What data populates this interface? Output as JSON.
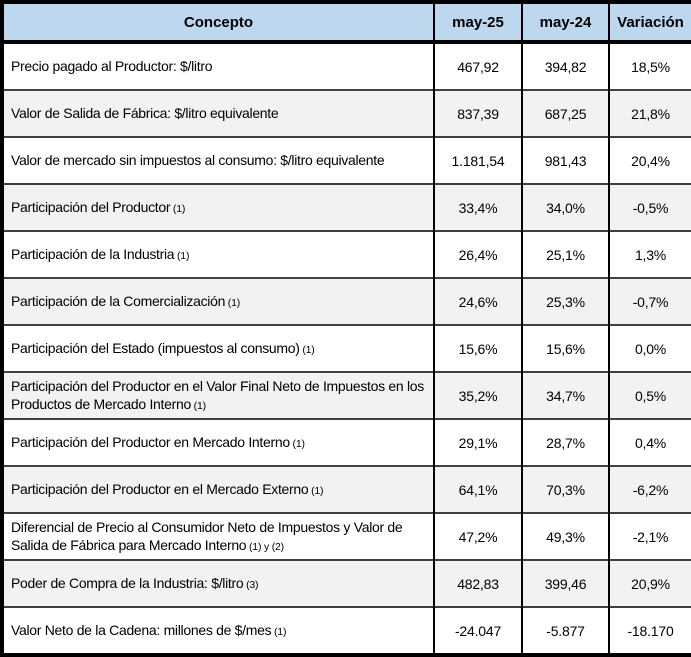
{
  "chart_data": {
    "type": "table",
    "columns": [
      "Concepto",
      "may-25",
      "may-24",
      "Variación"
    ],
    "rows": [
      {
        "label": "Precio pagado al Productor: $/litro",
        "note": "",
        "values": [
          "467,92",
          "394,82",
          "18,5%"
        ]
      },
      {
        "label": "Valor de Salida de Fábrica: $/litro equivalente",
        "note": "",
        "values": [
          "837,39",
          "687,25",
          "21,8%"
        ]
      },
      {
        "label": "Valor de mercado sin impuestos al consumo: $/litro equivalente",
        "note": "",
        "values": [
          "1.181,54",
          "981,43",
          "20,4%"
        ]
      },
      {
        "label": "Participación del Productor",
        "note": "(1)",
        "values": [
          "33,4%",
          "34,0%",
          "-0,5%"
        ]
      },
      {
        "label": "Participación de la Industria",
        "note": "(1)",
        "values": [
          "26,4%",
          "25,1%",
          "1,3%"
        ]
      },
      {
        "label": "Participación de la Comercialización",
        "note": "(1)",
        "values": [
          "24,6%",
          "25,3%",
          "-0,7%"
        ]
      },
      {
        "label": "Participación del Estado (impuestos al consumo)",
        "note": "(1)",
        "values": [
          "15,6%",
          "15,6%",
          "0,0%"
        ]
      },
      {
        "label": "Participación del Productor en el Valor Final Neto de Impuestos en los Productos de Mercado Interno",
        "note": "(1)",
        "values": [
          "35,2%",
          "34,7%",
          "0,5%"
        ]
      },
      {
        "label": "Participación del Productor en Mercado Interno",
        "note": "(1)",
        "values": [
          "29,1%",
          "28,7%",
          "0,4%"
        ]
      },
      {
        "label": "Participación del Productor en el Mercado Externo",
        "note": "(1)",
        "values": [
          "64,1%",
          "70,3%",
          "-6,2%"
        ]
      },
      {
        "label": "Diferencial de Precio al Consumidor Neto de Impuestos y Valor de Salida de Fábrica para Mercado Interno",
        "note": "(1) y (2)",
        "values": [
          "47,2%",
          "49,3%",
          "-2,1%"
        ]
      },
      {
        "label": "Poder de Compra de la Industria: $/litro",
        "note": "(3)",
        "values": [
          "482,83",
          "399,46",
          "20,9%"
        ]
      },
      {
        "label": "Valor Neto de la Cadena: millones de $/mes",
        "note": "(1)",
        "values": [
          "-24.047",
          "-5.877",
          "-18.170"
        ]
      }
    ],
    "layout": {
      "header_bg": "#BDD7EE",
      "row_alt_bg": "#F2F2F2",
      "frame_border": "#000000",
      "row_divider": "#404040",
      "shaded_row_indices": [
        1,
        3,
        5,
        7,
        9,
        11
      ]
    }
  }
}
